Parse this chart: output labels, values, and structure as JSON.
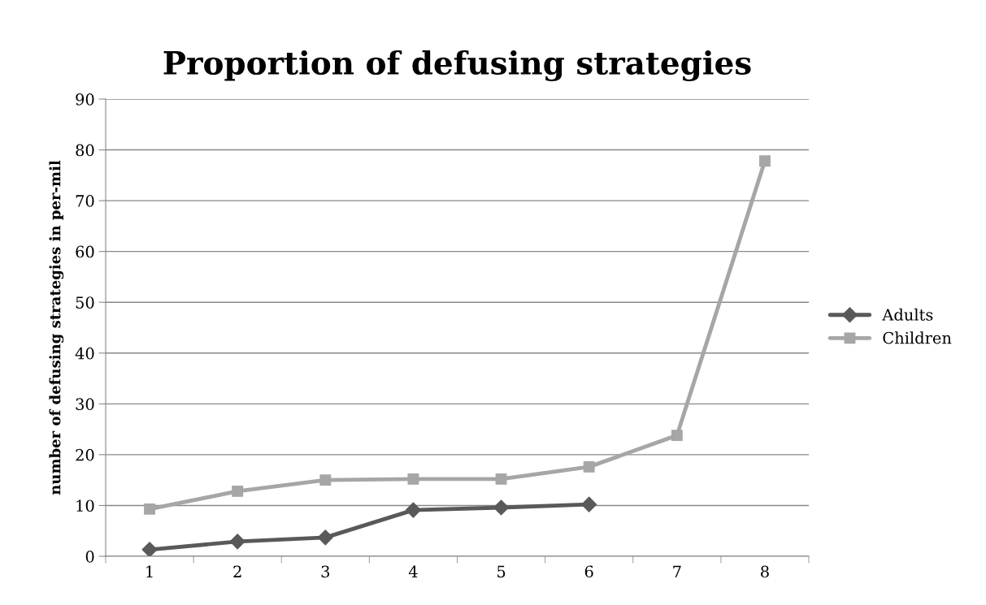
{
  "chart_data": {
    "type": "line",
    "title": "Proportion of defusing strategies",
    "ylabel": "number of defusing strategies in per-mil",
    "categories": [
      "1",
      "2",
      "3",
      "4",
      "5",
      "6",
      "7",
      "8"
    ],
    "series": [
      {
        "name": "Adults",
        "color": "#595959",
        "marker": "diamond",
        "values": [
          1.3,
          2.9,
          3.7,
          9.1,
          9.6,
          10.2,
          null,
          null
        ]
      },
      {
        "name": "Children",
        "color": "#a6a6a6",
        "marker": "square",
        "values": [
          9.3,
          12.8,
          15.0,
          15.2,
          15.2,
          17.6,
          23.8,
          77.8
        ]
      }
    ],
    "ylim": [
      0,
      90
    ],
    "yticks": [
      0,
      10,
      20,
      30,
      40,
      50,
      60,
      70,
      80,
      90
    ],
    "grid": "y",
    "legend": "right",
    "line_style": "solid"
  }
}
